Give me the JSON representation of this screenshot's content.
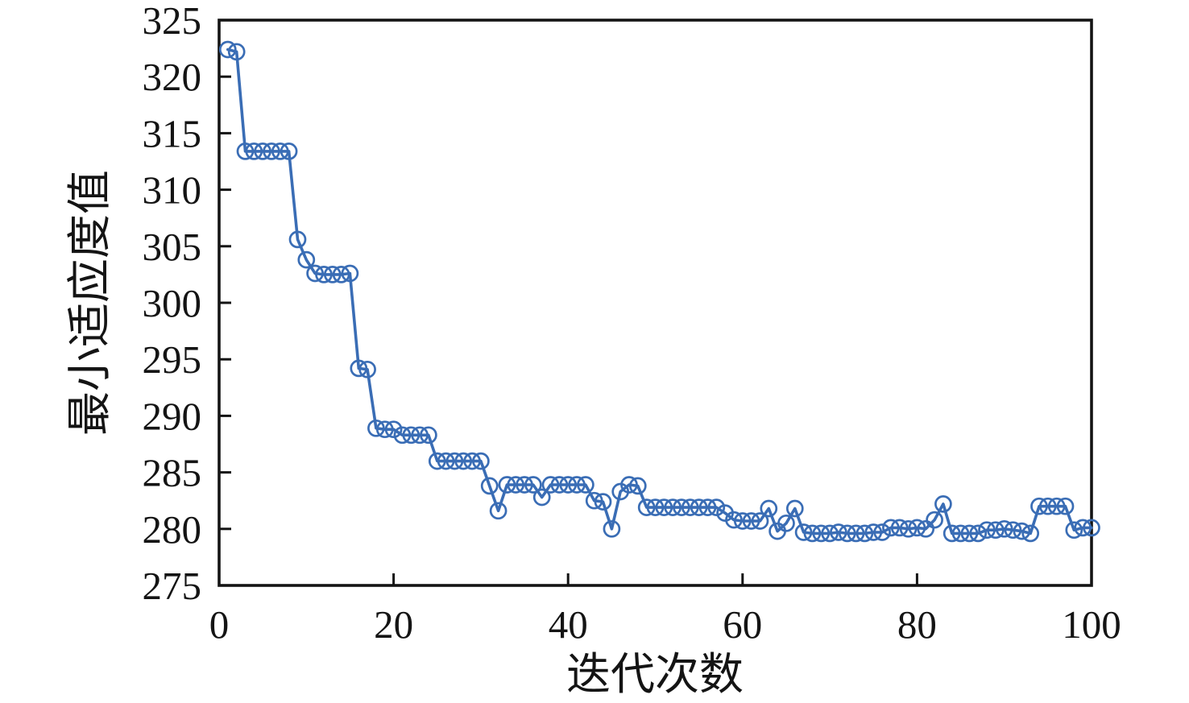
{
  "chart_data": {
    "type": "line",
    "title": "",
    "xlabel": "迭代次数",
    "ylabel": "最小适应度值",
    "xlim": [
      0,
      100
    ],
    "ylim": [
      275,
      325
    ],
    "x_ticks": [
      0,
      20,
      40,
      60,
      80,
      100
    ],
    "y_ticks": [
      275,
      280,
      285,
      290,
      295,
      300,
      305,
      310,
      315,
      320,
      325
    ],
    "grid": false,
    "legend_position": "none",
    "line_color": "#3a6db5",
    "axis_color": "#141414",
    "marker": "open-circle",
    "series_name": "最小适应度值",
    "x": [
      1,
      2,
      3,
      4,
      5,
      6,
      7,
      8,
      9,
      10,
      11,
      12,
      13,
      14,
      15,
      16,
      17,
      18,
      19,
      20,
      21,
      22,
      23,
      24,
      25,
      26,
      27,
      28,
      29,
      30,
      31,
      32,
      33,
      34,
      35,
      36,
      37,
      38,
      39,
      40,
      41,
      42,
      43,
      44,
      45,
      46,
      47,
      48,
      49,
      50,
      51,
      52,
      53,
      54,
      55,
      56,
      57,
      58,
      59,
      60,
      61,
      62,
      63,
      64,
      65,
      66,
      67,
      68,
      69,
      70,
      71,
      72,
      73,
      74,
      75,
      76,
      77,
      78,
      79,
      80,
      81,
      82,
      83,
      84,
      85,
      86,
      87,
      88,
      89,
      90,
      91,
      92,
      93,
      94,
      95,
      96,
      97,
      98,
      99,
      100
    ],
    "y": [
      322.4,
      322.2,
      313.4,
      313.4,
      313.4,
      313.4,
      313.4,
      313.4,
      305.6,
      303.8,
      302.6,
      302.5,
      302.5,
      302.5,
      302.6,
      294.2,
      294.1,
      288.9,
      288.8,
      288.8,
      288.3,
      288.3,
      288.3,
      288.3,
      286.0,
      286.0,
      286.0,
      286.0,
      286.0,
      286.0,
      283.8,
      281.6,
      283.9,
      283.9,
      283.9,
      283.9,
      282.8,
      283.9,
      283.9,
      283.9,
      283.9,
      283.9,
      282.5,
      282.4,
      280.0,
      283.3,
      283.9,
      283.8,
      281.9,
      281.9,
      281.9,
      281.9,
      281.9,
      281.9,
      281.9,
      281.9,
      281.9,
      281.4,
      280.8,
      280.7,
      280.7,
      280.7,
      281.8,
      279.8,
      280.5,
      281.8,
      279.7,
      279.6,
      279.6,
      279.6,
      279.7,
      279.6,
      279.6,
      279.6,
      279.7,
      279.7,
      280.1,
      280.1,
      280.0,
      280.1,
      280.0,
      280.8,
      282.2,
      279.6,
      279.6,
      279.6,
      279.6,
      279.9,
      279.9,
      280.0,
      279.9,
      279.8,
      279.6,
      282.0,
      282.0,
      282.0,
      282.0,
      279.9,
      280.1,
      280.1
    ]
  }
}
